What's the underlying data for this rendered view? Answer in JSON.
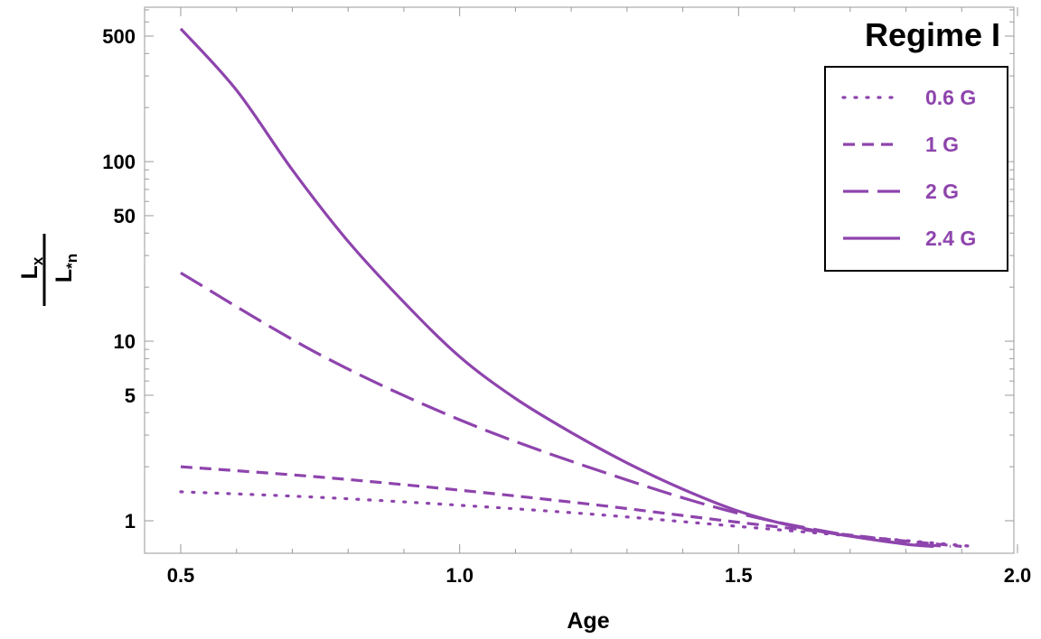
{
  "chart_data": {
    "type": "line",
    "title": "",
    "annotation": "Regime I",
    "xlabel": "Age",
    "ylabel_numerator": "L",
    "ylabel_numerator_sub": "x",
    "ylabel_denominator": "L",
    "ylabel_denominator_sub": "*n",
    "xscale": "linear",
    "yscale": "log",
    "xlim": [
      0.45,
      2.0
    ],
    "ylim": [
      0.8,
      800
    ],
    "grid": false,
    "legend_position": "top-right",
    "x_ticks": [
      {
        "value": 0.5,
        "label": "0.5"
      },
      {
        "value": 1.0,
        "label": "1.0"
      },
      {
        "value": 1.5,
        "label": "1.5"
      },
      {
        "value": 2.0,
        "label": "2.0"
      }
    ],
    "y_ticks": [
      {
        "value": 1,
        "label": "1"
      },
      {
        "value": 5,
        "label": "5"
      },
      {
        "value": 10,
        "label": "10"
      },
      {
        "value": 50,
        "label": "50"
      },
      {
        "value": 100,
        "label": "100"
      },
      {
        "value": 500,
        "label": "500"
      }
    ],
    "series": [
      {
        "name": "0.6 G",
        "style": "dotted",
        "color": "#8e44ad",
        "x": [
          0.5,
          0.75,
          1.0,
          1.25,
          1.5,
          1.75,
          1.92
        ],
        "y": [
          1.45,
          1.35,
          1.22,
          1.08,
          0.93,
          0.8,
          0.72
        ]
      },
      {
        "name": "1 G",
        "style": "dashed",
        "color": "#8e44ad",
        "x": [
          0.5,
          0.75,
          1.0,
          1.25,
          1.5,
          1.75,
          1.9
        ],
        "y": [
          2.0,
          1.75,
          1.48,
          1.22,
          0.98,
          0.8,
          0.72
        ]
      },
      {
        "name": "2 G",
        "style": "longdash",
        "color": "#8e44ad",
        "x": [
          0.5,
          0.75,
          1.0,
          1.25,
          1.5,
          1.75,
          1.88
        ],
        "y": [
          24.0,
          8.4,
          3.65,
          1.9,
          1.1,
          0.78,
          0.72
        ]
      },
      {
        "name": "2.4 G",
        "style": "solid",
        "color": "#8e44ad",
        "x": [
          0.5,
          0.6,
          0.7,
          0.8,
          0.9,
          1.0,
          1.1,
          1.2,
          1.3,
          1.4,
          1.5,
          1.6,
          1.7,
          1.8,
          1.85
        ],
        "y": [
          550,
          250,
          90,
          36,
          16.5,
          8.2,
          4.8,
          3.1,
          2.1,
          1.5,
          1.13,
          0.93,
          0.82,
          0.74,
          0.72
        ]
      }
    ]
  }
}
